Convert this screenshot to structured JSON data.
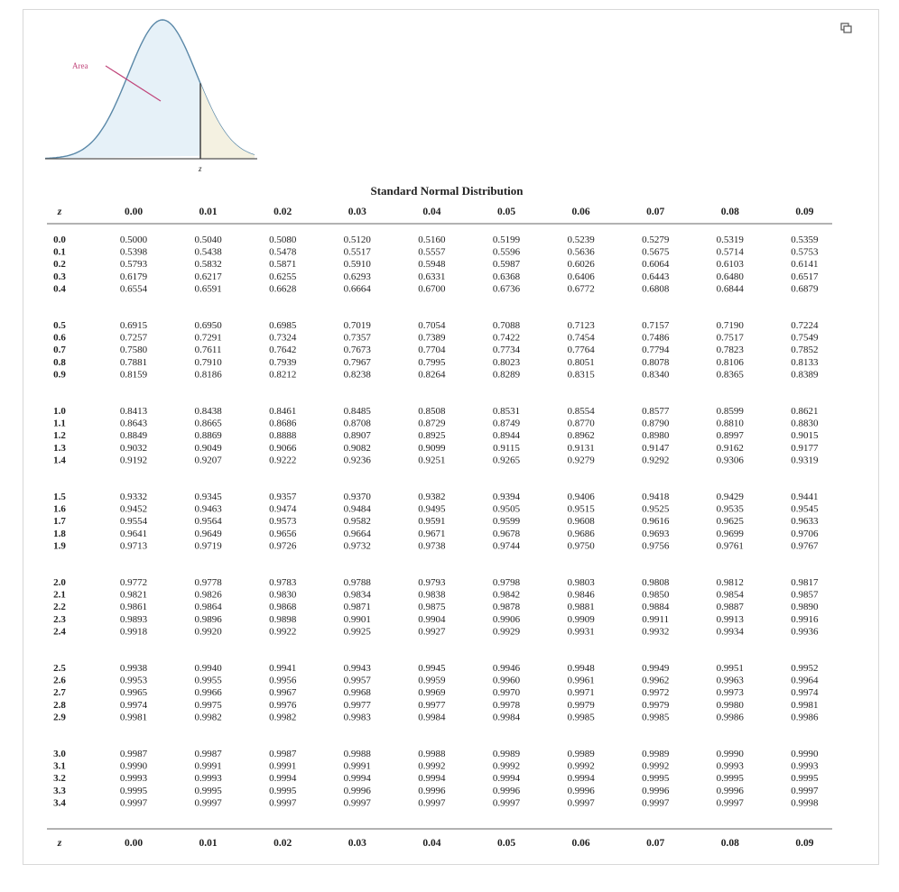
{
  "figure": {
    "area_label": "Area",
    "z_label": "z"
  },
  "table": {
    "title": "Standard Normal Distribution",
    "z_header": "z",
    "columns": [
      "0.00",
      "0.01",
      "0.02",
      "0.03",
      "0.04",
      "0.05",
      "0.06",
      "0.07",
      "0.08",
      "0.09"
    ],
    "rows": [
      {
        "z": "0.0",
        "values": [
          "0.5000",
          "0.5040",
          "0.5080",
          "0.5120",
          "0.5160",
          "0.5199",
          "0.5239",
          "0.5279",
          "0.5319",
          "0.5359"
        ]
      },
      {
        "z": "0.1",
        "values": [
          "0.5398",
          "0.5438",
          "0.5478",
          "0.5517",
          "0.5557",
          "0.5596",
          "0.5636",
          "0.5675",
          "0.5714",
          "0.5753"
        ]
      },
      {
        "z": "0.2",
        "values": [
          "0.5793",
          "0.5832",
          "0.5871",
          "0.5910",
          "0.5948",
          "0.5987",
          "0.6026",
          "0.6064",
          "0.6103",
          "0.6141"
        ]
      },
      {
        "z": "0.3",
        "values": [
          "0.6179",
          "0.6217",
          "0.6255",
          "0.6293",
          "0.6331",
          "0.6368",
          "0.6406",
          "0.6443",
          "0.6480",
          "0.6517"
        ]
      },
      {
        "z": "0.4",
        "values": [
          "0.6554",
          "0.6591",
          "0.6628",
          "0.6664",
          "0.6700",
          "0.6736",
          "0.6772",
          "0.6808",
          "0.6844",
          "0.6879"
        ]
      },
      {
        "z": "0.5",
        "values": [
          "0.6915",
          "0.6950",
          "0.6985",
          "0.7019",
          "0.7054",
          "0.7088",
          "0.7123",
          "0.7157",
          "0.7190",
          "0.7224"
        ]
      },
      {
        "z": "0.6",
        "values": [
          "0.7257",
          "0.7291",
          "0.7324",
          "0.7357",
          "0.7389",
          "0.7422",
          "0.7454",
          "0.7486",
          "0.7517",
          "0.7549"
        ]
      },
      {
        "z": "0.7",
        "values": [
          "0.7580",
          "0.7611",
          "0.7642",
          "0.7673",
          "0.7704",
          "0.7734",
          "0.7764",
          "0.7794",
          "0.7823",
          "0.7852"
        ]
      },
      {
        "z": "0.8",
        "values": [
          "0.7881",
          "0.7910",
          "0.7939",
          "0.7967",
          "0.7995",
          "0.8023",
          "0.8051",
          "0.8078",
          "0.8106",
          "0.8133"
        ]
      },
      {
        "z": "0.9",
        "values": [
          "0.8159",
          "0.8186",
          "0.8212",
          "0.8238",
          "0.8264",
          "0.8289",
          "0.8315",
          "0.8340",
          "0.8365",
          "0.8389"
        ]
      },
      {
        "z": "1.0",
        "values": [
          "0.8413",
          "0.8438",
          "0.8461",
          "0.8485",
          "0.8508",
          "0.8531",
          "0.8554",
          "0.8577",
          "0.8599",
          "0.8621"
        ]
      },
      {
        "z": "1.1",
        "values": [
          "0.8643",
          "0.8665",
          "0.8686",
          "0.8708",
          "0.8729",
          "0.8749",
          "0.8770",
          "0.8790",
          "0.8810",
          "0.8830"
        ]
      },
      {
        "z": "1.2",
        "values": [
          "0.8849",
          "0.8869",
          "0.8888",
          "0.8907",
          "0.8925",
          "0.8944",
          "0.8962",
          "0.8980",
          "0.8997",
          "0.9015"
        ]
      },
      {
        "z": "1.3",
        "values": [
          "0.9032",
          "0.9049",
          "0.9066",
          "0.9082",
          "0.9099",
          "0.9115",
          "0.9131",
          "0.9147",
          "0.9162",
          "0.9177"
        ]
      },
      {
        "z": "1.4",
        "values": [
          "0.9192",
          "0.9207",
          "0.9222",
          "0.9236",
          "0.9251",
          "0.9265",
          "0.9279",
          "0.9292",
          "0.9306",
          "0.9319"
        ]
      },
      {
        "z": "1.5",
        "values": [
          "0.9332",
          "0.9345",
          "0.9357",
          "0.9370",
          "0.9382",
          "0.9394",
          "0.9406",
          "0.9418",
          "0.9429",
          "0.9441"
        ]
      },
      {
        "z": "1.6",
        "values": [
          "0.9452",
          "0.9463",
          "0.9474",
          "0.9484",
          "0.9495",
          "0.9505",
          "0.9515",
          "0.9525",
          "0.9535",
          "0.9545"
        ]
      },
      {
        "z": "1.7",
        "values": [
          "0.9554",
          "0.9564",
          "0.9573",
          "0.9582",
          "0.9591",
          "0.9599",
          "0.9608",
          "0.9616",
          "0.9625",
          "0.9633"
        ]
      },
      {
        "z": "1.8",
        "values": [
          "0.9641",
          "0.9649",
          "0.9656",
          "0.9664",
          "0.9671",
          "0.9678",
          "0.9686",
          "0.9693",
          "0.9699",
          "0.9706"
        ]
      },
      {
        "z": "1.9",
        "values": [
          "0.9713",
          "0.9719",
          "0.9726",
          "0.9732",
          "0.9738",
          "0.9744",
          "0.9750",
          "0.9756",
          "0.9761",
          "0.9767"
        ]
      },
      {
        "z": "2.0",
        "values": [
          "0.9772",
          "0.9778",
          "0.9783",
          "0.9788",
          "0.9793",
          "0.9798",
          "0.9803",
          "0.9808",
          "0.9812",
          "0.9817"
        ]
      },
      {
        "z": "2.1",
        "values": [
          "0.9821",
          "0.9826",
          "0.9830",
          "0.9834",
          "0.9838",
          "0.9842",
          "0.9846",
          "0.9850",
          "0.9854",
          "0.9857"
        ]
      },
      {
        "z": "2.2",
        "values": [
          "0.9861",
          "0.9864",
          "0.9868",
          "0.9871",
          "0.9875",
          "0.9878",
          "0.9881",
          "0.9884",
          "0.9887",
          "0.9890"
        ]
      },
      {
        "z": "2.3",
        "values": [
          "0.9893",
          "0.9896",
          "0.9898",
          "0.9901",
          "0.9904",
          "0.9906",
          "0.9909",
          "0.9911",
          "0.9913",
          "0.9916"
        ]
      },
      {
        "z": "2.4",
        "values": [
          "0.9918",
          "0.9920",
          "0.9922",
          "0.9925",
          "0.9927",
          "0.9929",
          "0.9931",
          "0.9932",
          "0.9934",
          "0.9936"
        ]
      },
      {
        "z": "2.5",
        "values": [
          "0.9938",
          "0.9940",
          "0.9941",
          "0.9943",
          "0.9945",
          "0.9946",
          "0.9948",
          "0.9949",
          "0.9951",
          "0.9952"
        ]
      },
      {
        "z": "2.6",
        "values": [
          "0.9953",
          "0.9955",
          "0.9956",
          "0.9957",
          "0.9959",
          "0.9960",
          "0.9961",
          "0.9962",
          "0.9963",
          "0.9964"
        ]
      },
      {
        "z": "2.7",
        "values": [
          "0.9965",
          "0.9966",
          "0.9967",
          "0.9968",
          "0.9969",
          "0.9970",
          "0.9971",
          "0.9972",
          "0.9973",
          "0.9974"
        ]
      },
      {
        "z": "2.8",
        "values": [
          "0.9974",
          "0.9975",
          "0.9976",
          "0.9977",
          "0.9977",
          "0.9978",
          "0.9979",
          "0.9979",
          "0.9980",
          "0.9981"
        ]
      },
      {
        "z": "2.9",
        "values": [
          "0.9981",
          "0.9982",
          "0.9982",
          "0.9983",
          "0.9984",
          "0.9984",
          "0.9985",
          "0.9985",
          "0.9986",
          "0.9986"
        ]
      },
      {
        "z": "3.0",
        "values": [
          "0.9987",
          "0.9987",
          "0.9987",
          "0.9988",
          "0.9988",
          "0.9989",
          "0.9989",
          "0.9989",
          "0.9990",
          "0.9990"
        ]
      },
      {
        "z": "3.1",
        "values": [
          "0.9990",
          "0.9991",
          "0.9991",
          "0.9991",
          "0.9992",
          "0.9992",
          "0.9992",
          "0.9992",
          "0.9993",
          "0.9993"
        ]
      },
      {
        "z": "3.2",
        "values": [
          "0.9993",
          "0.9993",
          "0.9994",
          "0.9994",
          "0.9994",
          "0.9994",
          "0.9994",
          "0.9995",
          "0.9995",
          "0.9995"
        ]
      },
      {
        "z": "3.3",
        "values": [
          "0.9995",
          "0.9995",
          "0.9995",
          "0.9996",
          "0.9996",
          "0.9996",
          "0.9996",
          "0.9996",
          "0.9996",
          "0.9997"
        ]
      },
      {
        "z": "3.4",
        "values": [
          "0.9997",
          "0.9997",
          "0.9997",
          "0.9997",
          "0.9997",
          "0.9997",
          "0.9997",
          "0.9997",
          "0.9997",
          "0.9998"
        ]
      }
    ]
  }
}
